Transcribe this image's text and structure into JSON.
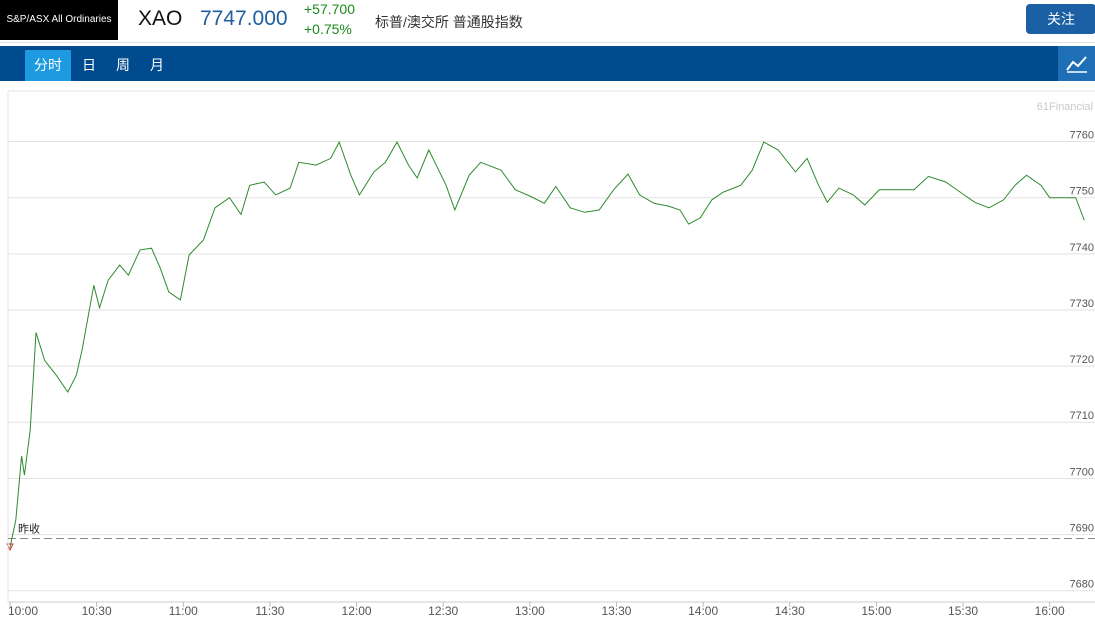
{
  "header": {
    "logo": "S&P/ASX All Ordinaries",
    "symbol": "XAO",
    "price": "7747.000",
    "change": "+57.700",
    "change_pct": "+0.75%",
    "name": "标普/澳交所 普通股指数",
    "follow_button": "关注",
    "tabs": [
      "分时",
      "日",
      "周",
      "月"
    ]
  },
  "chart_data": {
    "type": "line",
    "watermark": "61Financial",
    "x": [
      "10:00",
      "10:02",
      "10:04",
      "10:05",
      "10:07",
      "10:09",
      "10:12",
      "10:16",
      "10:20",
      "10:23",
      "10:25",
      "10:29",
      "10:31",
      "10:34",
      "10:38",
      "10:41",
      "10:45",
      "10:49",
      "10:52",
      "10:55",
      "10:59",
      "11:02",
      "11:07",
      "11:11",
      "11:16",
      "11:20",
      "11:23",
      "11:28",
      "11:32",
      "11:37",
      "11:40",
      "11:46",
      "11:51",
      "11:54",
      "11:58",
      "12:01",
      "12:06",
      "12:10",
      "12:14",
      "12:18",
      "12:21",
      "12:25",
      "12:31",
      "12:34",
      "12:39",
      "12:43",
      "12:50",
      "12:55",
      "13:00",
      "13:05",
      "13:09",
      "13:14",
      "13:19",
      "13:24",
      "13:29",
      "13:34",
      "13:38",
      "13:43",
      "13:48",
      "13:52",
      "13:55",
      "13:59",
      "14:03",
      "14:07",
      "14:13",
      "14:17",
      "14:21",
      "14:26",
      "14:32",
      "14:36",
      "14:40",
      "14:43",
      "14:47",
      "14:52",
      "14:56",
      "15:01",
      "15:08",
      "15:13",
      "15:18",
      "15:24",
      "15:29",
      "15:34",
      "15:39",
      "15:44",
      "15:48",
      "15:52",
      "15:57",
      "16:00",
      "16:09",
      "16:12"
    ],
    "series": [
      {
        "color": "#2e8b2e",
        "values": [
          7687.7,
          7692.6,
          7704,
          7700.6,
          7708.6,
          7726,
          7721,
          7718.4,
          7715.4,
          7718.4,
          7723,
          7734.4,
          7730.4,
          7735.3,
          7738,
          7736.2,
          7740.7,
          7741,
          7737.5,
          7733.2,
          7731.8,
          7739.8,
          7742.5,
          7748.2,
          7750,
          7747,
          7752.2,
          7752.8,
          7750.5,
          7751.7,
          7756.3,
          7755.8,
          7757,
          7759.9,
          7754,
          7750.5,
          7754.6,
          7756.3,
          7759.9,
          7755.8,
          7753.5,
          7758.5,
          7752.2,
          7747.8,
          7754,
          7756.3,
          7754.9,
          7751.4,
          7750.3,
          7749,
          7752,
          7748.2,
          7747.4,
          7747.8,
          7751.4,
          7754.2,
          7750.5,
          7749,
          7748.5,
          7747.8,
          7745.3,
          7746.4,
          7749.6,
          7751,
          7752.2,
          7754.9,
          7759.9,
          7758.5,
          7754.6,
          7757,
          7752.2,
          7749.2,
          7751.7,
          7750.5,
          7748.7,
          7751.4,
          7751.4,
          7751.4,
          7753.8,
          7752.8,
          7751,
          7749.2,
          7748.2,
          7749.6,
          7752.2,
          7754,
          7752.2,
          7750,
          7750,
          7746
        ]
      }
    ],
    "prev_close": {
      "value": 7689.3,
      "label": "昨收"
    },
    "xlim": [
      "10:00",
      "16:15"
    ],
    "xticks": [
      "10:00",
      "10:30",
      "11:00",
      "11:30",
      "12:00",
      "12:30",
      "13:00",
      "13:30",
      "14:00",
      "14:30",
      "15:00",
      "15:30",
      "16:00"
    ],
    "ylim": [
      7678,
      7769
    ],
    "yticks": [
      7680,
      7690,
      7700,
      7710,
      7720,
      7730,
      7740,
      7750,
      7760
    ],
    "grid": true
  }
}
